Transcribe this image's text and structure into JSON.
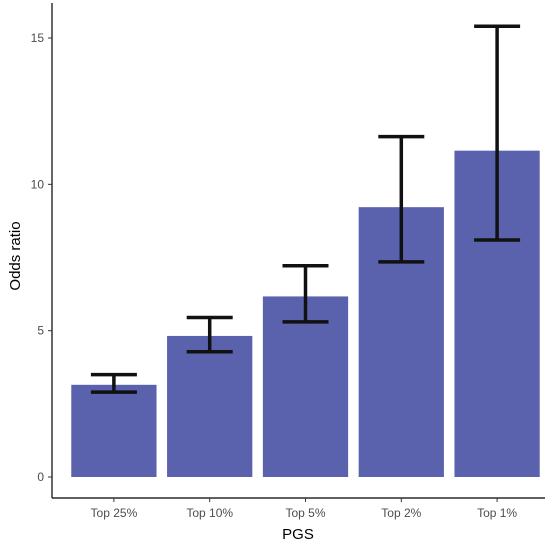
{
  "chart_data": {
    "type": "bar",
    "xlabel": "PGS",
    "ylabel": "Odds ratio",
    "categories": [
      "Top 25%",
      "Top 10%",
      "Top 5%",
      "Top 2%",
      "Top 1%"
    ],
    "values": [
      3.15,
      4.82,
      6.17,
      9.22,
      11.15
    ],
    "error_lower": [
      2.9,
      4.28,
      5.3,
      7.35,
      8.1
    ],
    "error_upper": [
      3.5,
      5.45,
      7.22,
      11.63,
      15.4
    ],
    "ylim": [
      0,
      16
    ],
    "yticks": [
      0,
      5,
      10,
      15
    ],
    "grid": false,
    "bar_color": "#5b62ad",
    "error_bar_color": "#111111",
    "axis_color": "#000000"
  }
}
